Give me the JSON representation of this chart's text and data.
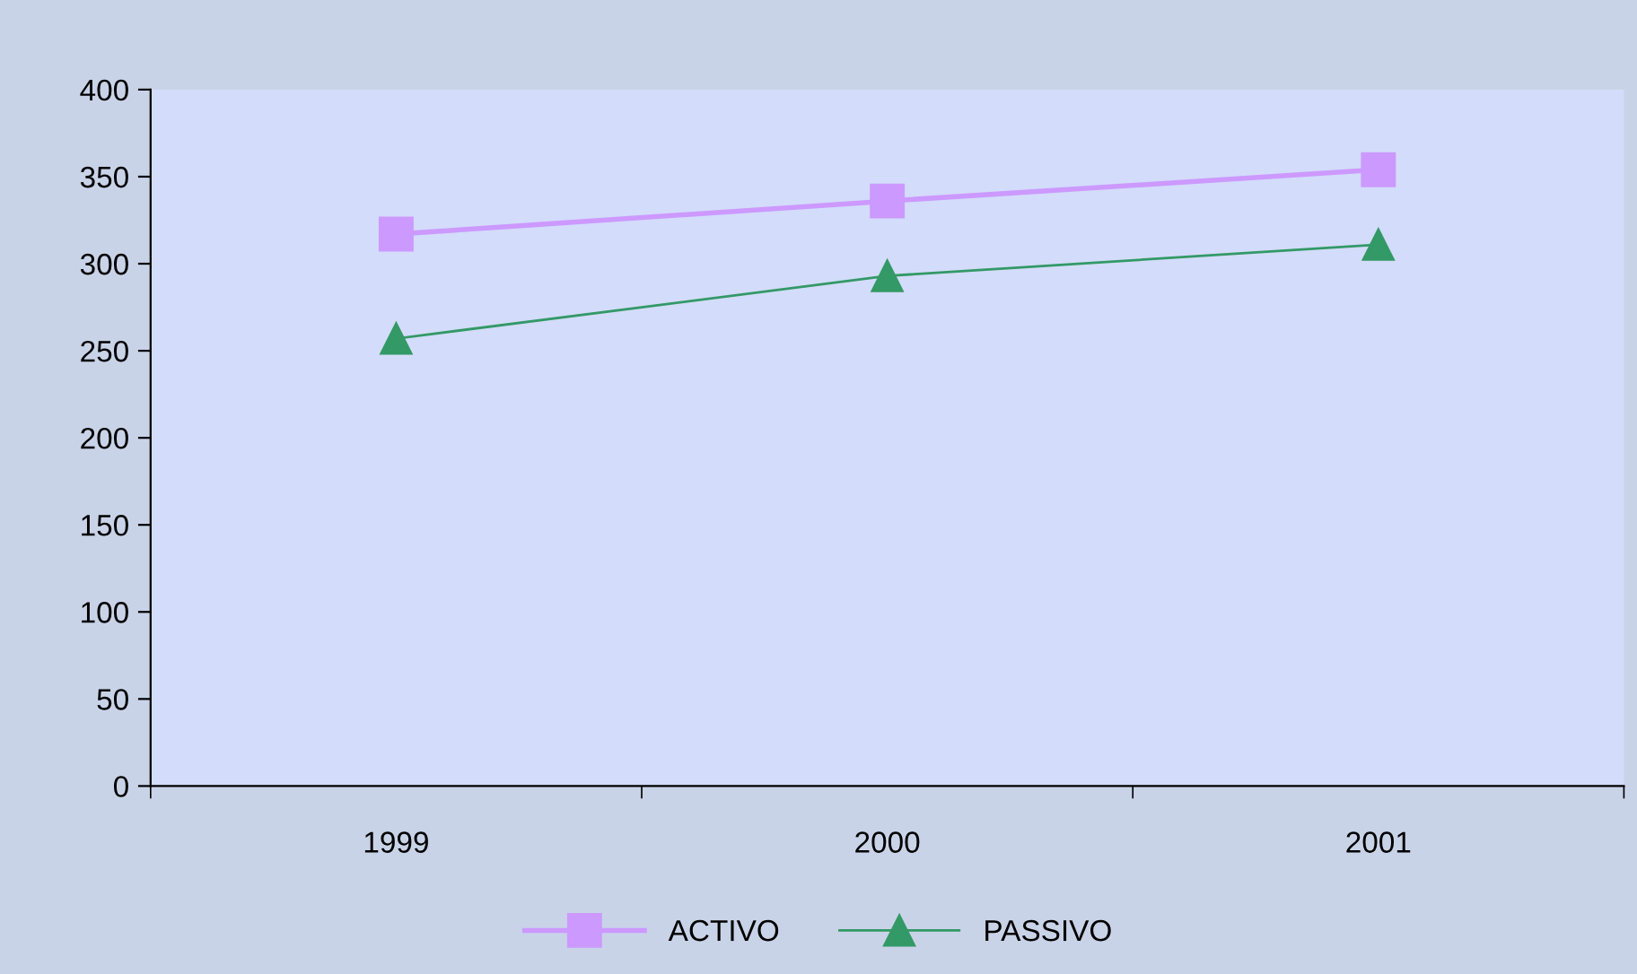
{
  "chart_data": {
    "type": "line",
    "categories": [
      "1999",
      "2000",
      "2001"
    ],
    "series": [
      {
        "name": "ACTIVO",
        "color": "#cc99ff",
        "marker": "square",
        "values": [
          317,
          336,
          354
        ]
      },
      {
        "name": "PASSIVO",
        "color": "#339966",
        "marker": "triangle",
        "values": [
          257,
          293,
          311
        ]
      }
    ],
    "ylim": [
      0,
      400
    ],
    "yticks": [
      0,
      50,
      100,
      150,
      200,
      250,
      300,
      350,
      400
    ],
    "grid": false,
    "legend": "bottom",
    "line_style": "solid"
  }
}
